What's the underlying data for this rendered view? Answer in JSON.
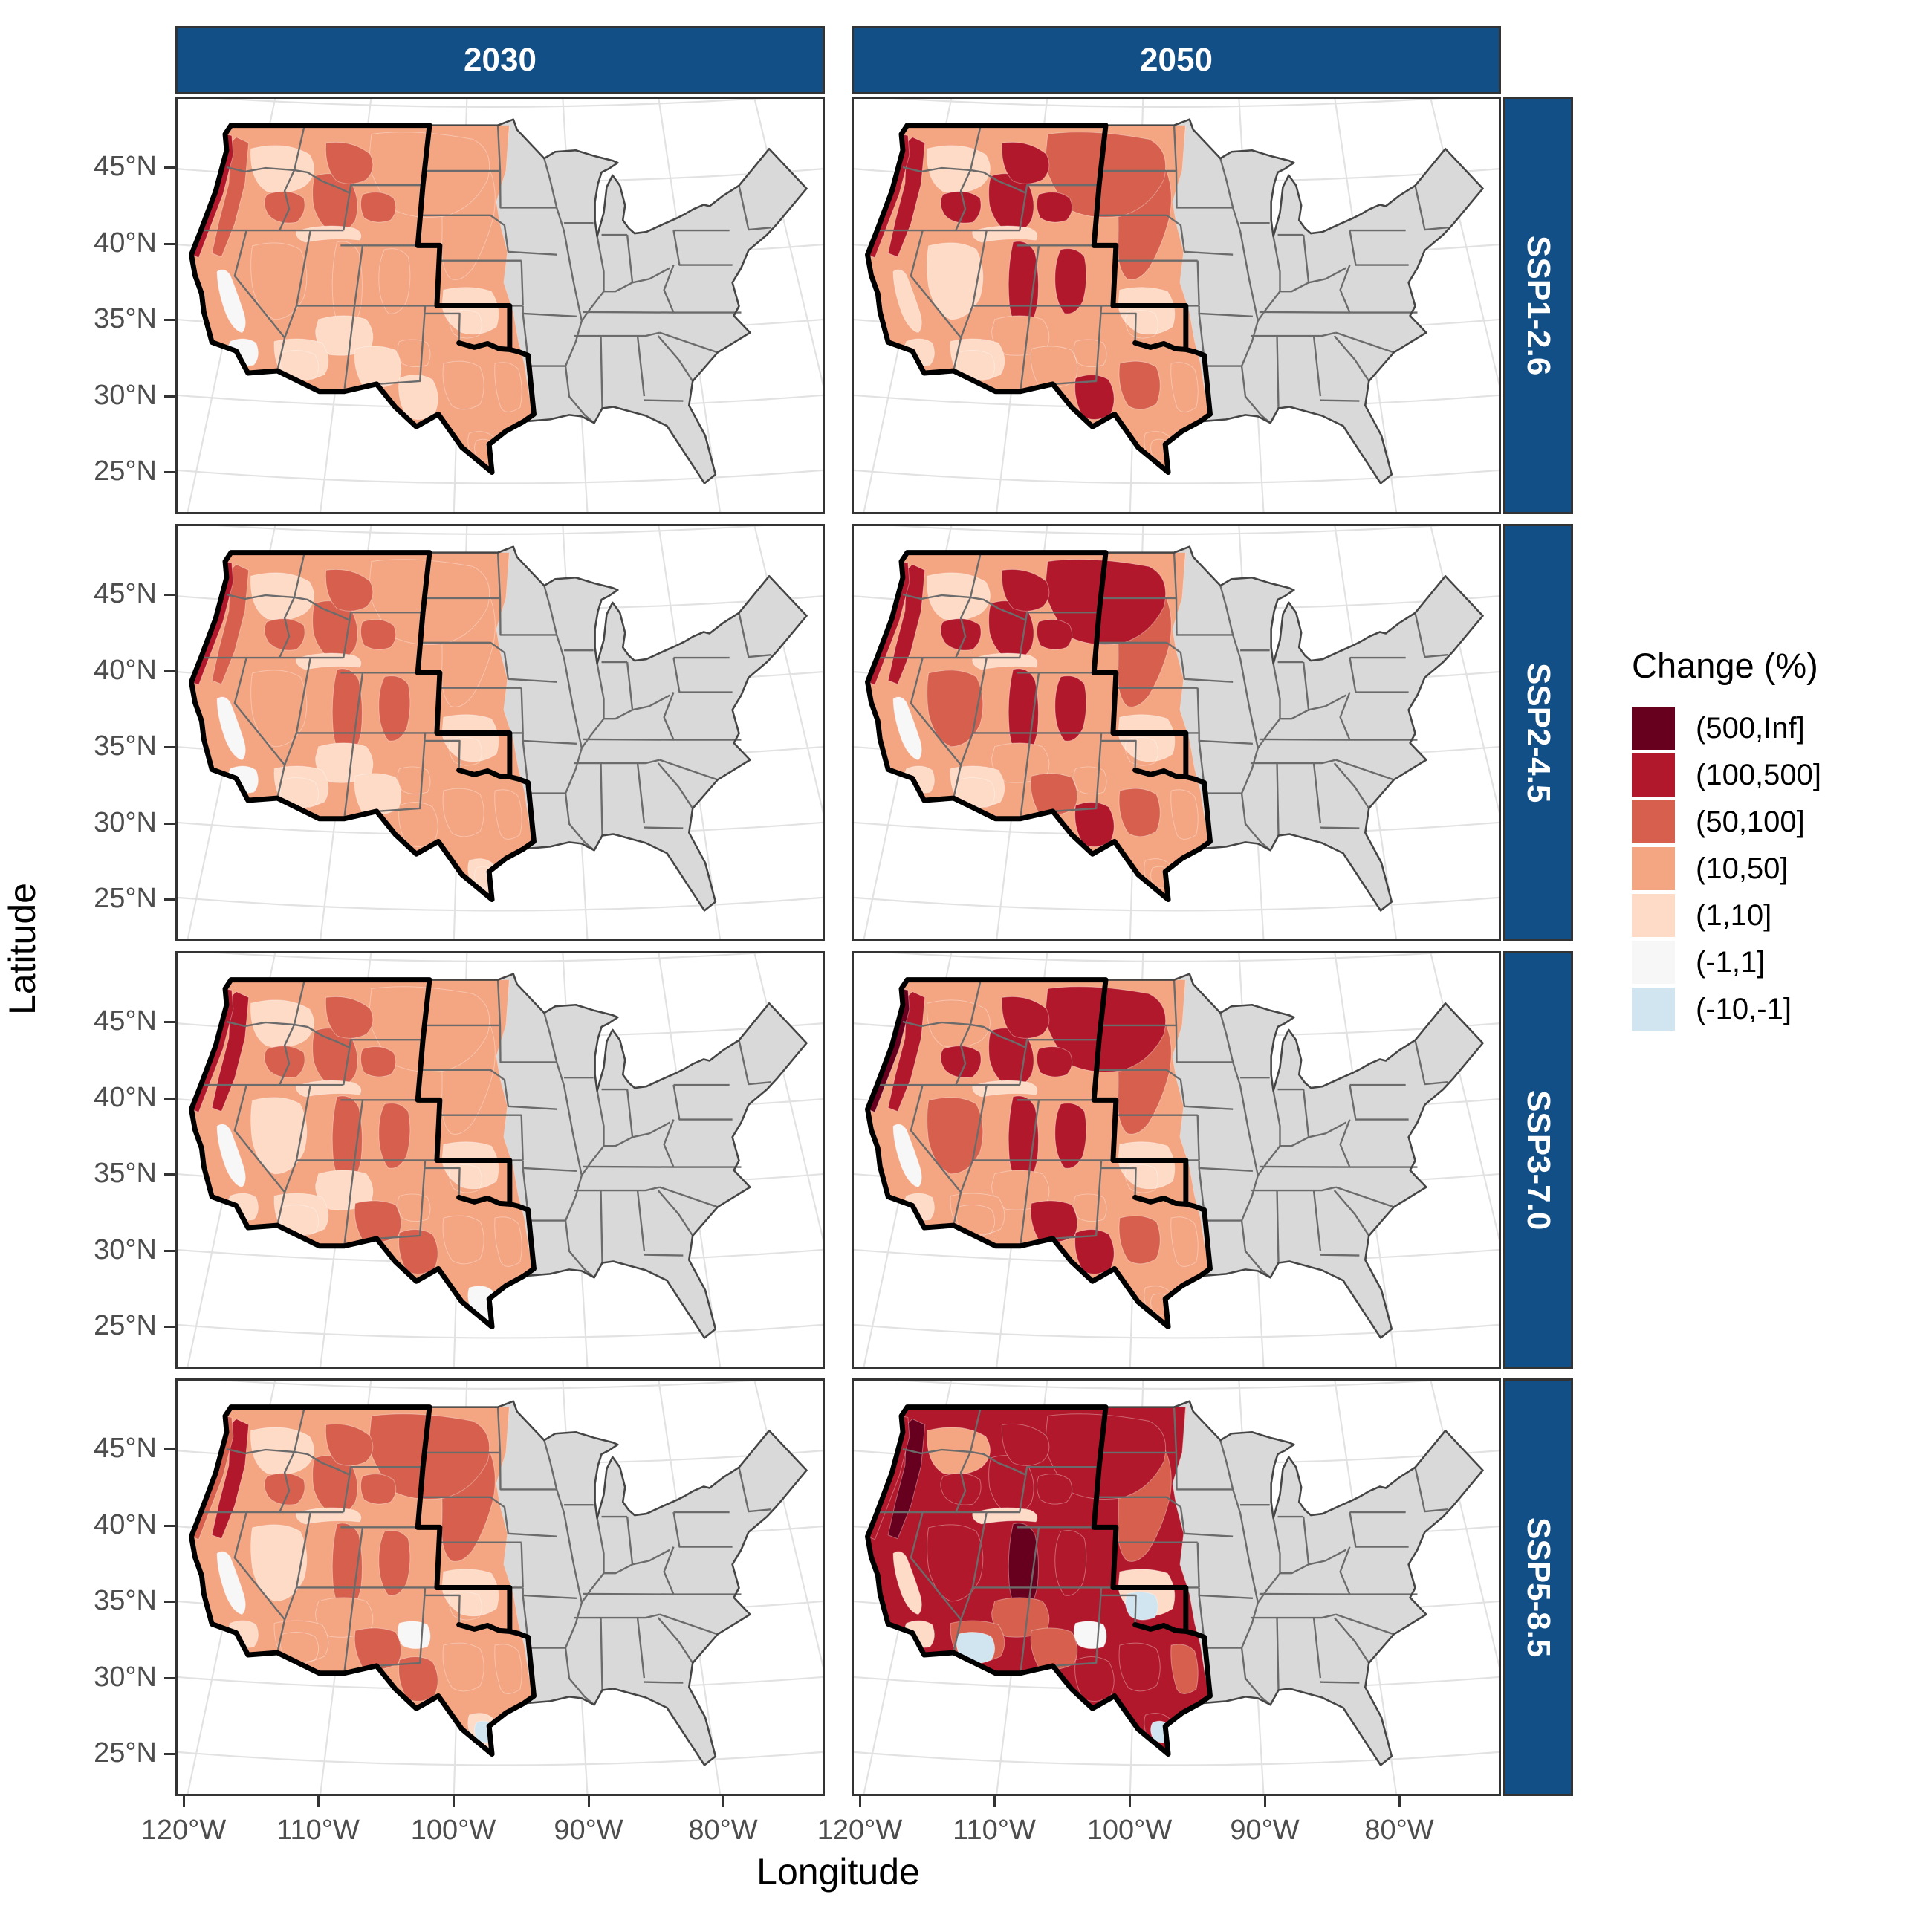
{
  "figure": {
    "x_axis_title": "Longitude",
    "y_axis_title": "Latitude"
  },
  "axes": {
    "x_ticks": [
      "120°W",
      "110°W",
      "100°W",
      "90°W",
      "80°W"
    ],
    "y_ticks": [
      "45°N",
      "40°N",
      "35°N",
      "30°N",
      "25°N"
    ]
  },
  "facets": {
    "columns": [
      "2030",
      "2050"
    ],
    "rows": [
      "SSP1-2.6",
      "SSP2-4.5",
      "SSP3-7.0",
      "SSP5-8.5"
    ]
  },
  "legend": {
    "title": "Change (%)",
    "items": [
      {
        "label": "(500,Inf]",
        "color": "#67001f"
      },
      {
        "label": "(100,500]",
        "color": "#b2182b"
      },
      {
        "label": "(50,100]",
        "color": "#d6604d"
      },
      {
        "label": "(10,50]",
        "color": "#f4a582"
      },
      {
        "label": "(1,10]",
        "color": "#fddbc7"
      },
      {
        "label": "(-1,1]",
        "color": "#f7f7f7"
      },
      {
        "label": "(-10,-1]",
        "color": "#d1e5f0"
      }
    ]
  },
  "colors": {
    "strip_fill": "#124f86",
    "strip_text": "#ffffff",
    "land_gray": "#d9d9d9",
    "state_border": "#6b6b6b",
    "country_outline": "#454545",
    "study_region_outline": "#000000",
    "panel_border": "#333333",
    "graticule": "#e2e2e2",
    "tick_text": "#4d4d4d",
    "palette": {
      "inf": "#67001f",
      "c100": "#b2182b",
      "c50": "#d6604d",
      "c10": "#f4a582",
      "c1": "#fddbc7",
      "c0": "#f7f7f7",
      "cn": "#d1e5f0",
      "none": "transparent"
    }
  },
  "chart_data": {
    "type": "heatmap",
    "title": "Projected change (%) in western US, faceted by year (2030, 2050) and scenario (SSP1-2.6, SSP2-4.5, SSP3-7.0, SSP5-8.5)",
    "legend_bins": [
      "(500,Inf]",
      "(100,500]",
      "(50,100]",
      "(10,50]",
      "(1,10]",
      "(-1,1]",
      "(-10,-1]"
    ],
    "xlabel": "Longitude",
    "ylabel": "Latitude",
    "x_range_deg_W": [
      120,
      80
    ],
    "y_range_deg_N": [
      25,
      45
    ],
    "panels": [
      {
        "year": "2030",
        "scenario": "SSP1-2.6",
        "regions": {
          "base": "c10",
          "fringe": "c1",
          "plains": "c10",
          "mtplains": "c10",
          "cascades": "c50",
          "coast": "c100",
          "columbia": "c1",
          "oreast": "c50",
          "idaho": "c50",
          "mtwest": "c50",
          "snake": "c1",
          "wymts": "c50",
          "basin": "c10",
          "wasatch": "c10",
          "corockies": "c10",
          "plateau": "c1",
          "azsouth": "c1",
          "nmsouth": "c1",
          "nmwhite": "none",
          "txwest": "c1",
          "txhill": "c10",
          "txeast": "c10",
          "txsouth": "c10",
          "okks": "c1",
          "valley": "c0",
          "socal": "c0",
          "blueaz": "none",
          "blueok": "none",
          "bluetx": "none"
        }
      },
      {
        "year": "2050",
        "scenario": "SSP1-2.6",
        "regions": {
          "base": "c10",
          "fringe": "c1",
          "plains": "c50",
          "mtplains": "c50",
          "cascades": "c100",
          "coast": "c100",
          "columbia": "c1",
          "oreast": "c100",
          "idaho": "c100",
          "mtwest": "c100",
          "snake": "c1",
          "wymts": "c100",
          "basin": "c1",
          "wasatch": "c100",
          "corockies": "c100",
          "plateau": "c10",
          "azsouth": "c1",
          "nmsouth": "c10",
          "nmwhite": "none",
          "txwest": "c100",
          "txhill": "c50",
          "txeast": "c10",
          "txsouth": "c10",
          "okks": "c1",
          "valley": "c1",
          "socal": "c1",
          "blueaz": "none",
          "blueok": "none",
          "bluetx": "none"
        }
      },
      {
        "year": "2030",
        "scenario": "SSP2-4.5",
        "regions": {
          "base": "c10",
          "fringe": "c1",
          "plains": "c10",
          "mtplains": "c10",
          "cascades": "c50",
          "coast": "c100",
          "columbia": "c1",
          "oreast": "c50",
          "idaho": "c50",
          "mtwest": "c50",
          "snake": "c1",
          "wymts": "c50",
          "basin": "c10",
          "wasatch": "c50",
          "corockies": "c50",
          "plateau": "c1",
          "azsouth": "c1",
          "nmsouth": "c1",
          "nmwhite": "none",
          "txwest": "c10",
          "txhill": "c10",
          "txeast": "c10",
          "txsouth": "c1",
          "okks": "c1",
          "valley": "c0",
          "socal": "c0",
          "blueaz": "none",
          "blueok": "none",
          "bluetx": "none"
        }
      },
      {
        "year": "2050",
        "scenario": "SSP2-4.5",
        "regions": {
          "base": "c10",
          "fringe": "c1",
          "plains": "c50",
          "mtplains": "c100",
          "cascades": "c100",
          "coast": "c100",
          "columbia": "c1",
          "oreast": "c100",
          "idaho": "c100",
          "mtwest": "c100",
          "snake": "c1",
          "wymts": "c100",
          "basin": "c50",
          "wasatch": "c100",
          "corockies": "c100",
          "plateau": "c10",
          "azsouth": "c1",
          "nmsouth": "c50",
          "nmwhite": "none",
          "txwest": "c100",
          "txhill": "c50",
          "txeast": "c10",
          "txsouth": "c10",
          "okks": "c1",
          "valley": "c0",
          "socal": "c1",
          "blueaz": "none",
          "blueok": "none",
          "bluetx": "none"
        }
      },
      {
        "year": "2030",
        "scenario": "SSP3-7.0",
        "regions": {
          "base": "c10",
          "fringe": "c1",
          "plains": "c10",
          "mtplains": "c10",
          "cascades": "c100",
          "coast": "c100",
          "columbia": "c1",
          "oreast": "c50",
          "idaho": "c50",
          "mtwest": "c50",
          "snake": "c1",
          "wymts": "c50",
          "basin": "c1",
          "wasatch": "c50",
          "corockies": "c50",
          "plateau": "c1",
          "azsouth": "c1",
          "nmsouth": "c50",
          "nmwhite": "none",
          "txwest": "c50",
          "txhill": "c10",
          "txeast": "c10",
          "txsouth": "c0",
          "okks": "c1",
          "valley": "c0",
          "socal": "c1",
          "blueaz": "none",
          "blueok": "none",
          "bluetx": "none"
        }
      },
      {
        "year": "2050",
        "scenario": "SSP3-7.0",
        "regions": {
          "base": "c10",
          "fringe": "c1",
          "plains": "c50",
          "mtplains": "c100",
          "cascades": "c100",
          "coast": "inf",
          "columbia": "c10",
          "oreast": "c100",
          "idaho": "c100",
          "mtwest": "c100",
          "snake": "c1",
          "wymts": "c100",
          "basin": "c50",
          "wasatch": "c100",
          "corockies": "c100",
          "plateau": "c10",
          "azsouth": "c10",
          "nmsouth": "c100",
          "nmwhite": "none",
          "txwest": "c100",
          "txhill": "c50",
          "txeast": "c10",
          "txsouth": "c10",
          "okks": "c1",
          "valley": "c0",
          "socal": "c1",
          "blueaz": "none",
          "blueok": "none",
          "bluetx": "none"
        }
      },
      {
        "year": "2030",
        "scenario": "SSP5-8.5",
        "regions": {
          "base": "c10",
          "fringe": "c1",
          "plains": "c50",
          "mtplains": "c50",
          "cascades": "c100",
          "coast": "c50",
          "columbia": "c1",
          "oreast": "c50",
          "idaho": "c50",
          "mtwest": "c50",
          "snake": "c1",
          "wymts": "c50",
          "basin": "c1",
          "wasatch": "c50",
          "corockies": "c50",
          "plateau": "c10",
          "azsouth": "c10",
          "nmsouth": "c50",
          "nmwhite": "c0",
          "txwest": "c50",
          "txhill": "c10",
          "txeast": "c10",
          "txsouth": "c1",
          "okks": "c1",
          "valley": "c0",
          "socal": "c1",
          "blueaz": "none",
          "blueok": "none",
          "bluetx": "cn"
        }
      },
      {
        "year": "2050",
        "scenario": "SSP5-8.5",
        "regions": {
          "base": "c100",
          "fringe": "c10",
          "plains": "c50",
          "mtplains": "c100",
          "cascades": "inf",
          "coast": "c100",
          "columbia": "c10",
          "oreast": "c100",
          "idaho": "c100",
          "mtwest": "c100",
          "snake": "c1",
          "wymts": "c100",
          "basin": "c100",
          "wasatch": "inf",
          "corockies": "c100",
          "plateau": "c50",
          "azsouth": "c50",
          "nmsouth": "c50",
          "nmwhite": "c0",
          "txwest": "c100",
          "txhill": "c100",
          "txeast": "c50",
          "txsouth": "c100",
          "okks": "c1",
          "valley": "c1",
          "socal": "c1",
          "blueaz": "cn",
          "blueok": "cn",
          "bluetx": "cn"
        }
      }
    ]
  }
}
